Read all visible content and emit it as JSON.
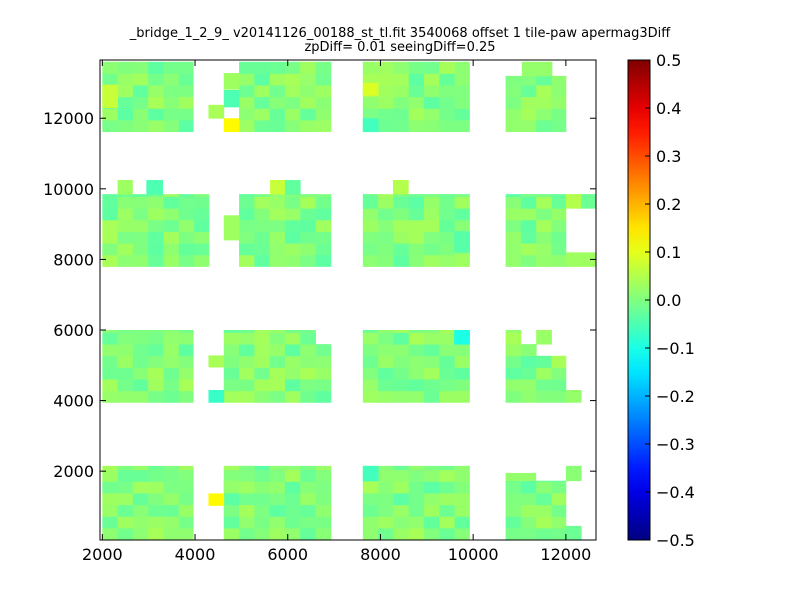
{
  "chart_data": {
    "type": "heatmap",
    "title": "_bridge_1_2_9_ v20141126_00188_st_tl.fit 3540068 offset 1 tile-paw apermag3Diff",
    "subtitle": "zpDiff= 0.01 seeingDiff=0.25",
    "xlim": [
      1950,
      12650
    ],
    "ylim": [
      50,
      13650
    ],
    "xticks": [
      2000,
      4000,
      6000,
      8000,
      10000,
      12000
    ],
    "yticks": [
      2000,
      4000,
      6000,
      8000,
      10000,
      12000
    ],
    "colorbar": {
      "range": [
        -0.5,
        0.5
      ],
      "ticks": [
        "0.5",
        "0.4",
        "0.3",
        "0.2",
        "0.1",
        "0.0",
        "−0.1",
        "−0.2",
        "−0.3",
        "−0.4",
        "−0.5"
      ],
      "colormap": "jet"
    },
    "cell_size": 330,
    "detectors": [
      {
        "x0": 2000,
        "x1": 3960,
        "y0": 60,
        "y1": 2150,
        "extra": [],
        "missing": []
      },
      {
        "x0": 4620,
        "x1": 6930,
        "y0": 60,
        "y1": 2150,
        "extra": [
          [
            4290,
            1030,
            4620,
            1370,
            0.13
          ],
          [
            4620,
            1400,
            4950,
            1730,
            0.02
          ],
          [
            4950,
            1730,
            5280,
            2150,
            0.0
          ]
        ],
        "missing": []
      },
      {
        "x0": 7620,
        "x1": 9920,
        "y0": 60,
        "y1": 2150,
        "extra": [],
        "missing": []
      },
      {
        "x0": 10700,
        "x1": 12000,
        "y0": 60,
        "y1": 1730,
        "extra": [
          [
            10700,
            1730,
            11350,
            1950,
            0.02
          ],
          [
            12000,
            60,
            12330,
            450,
            -0.02
          ],
          [
            12000,
            1730,
            12330,
            2150,
            0.01
          ]
        ],
        "missing": []
      },
      {
        "x0": 2000,
        "x1": 3960,
        "y0": 3950,
        "y1": 6000,
        "extra": [],
        "missing": []
      },
      {
        "x0": 4620,
        "x1": 6930,
        "y0": 3950,
        "y1": 6000,
        "extra": [
          [
            4290,
            3950,
            4620,
            4300,
            -0.07
          ],
          [
            4290,
            4950,
            4620,
            5280,
            0.04
          ]
        ],
        "missing": [
          [
            6600,
            5550,
            6930,
            6000
          ]
        ]
      },
      {
        "x0": 7620,
        "x1": 9920,
        "y0": 3950,
        "y1": 6000,
        "extra": [],
        "missing": []
      },
      {
        "x0": 10700,
        "x1": 12000,
        "y0": 3950,
        "y1": 6000,
        "extra": [
          [
            12000,
            3950,
            12330,
            4300,
            0.02
          ]
        ],
        "missing": [
          [
            11050,
            5600,
            11450,
            6000
          ],
          [
            11700,
            5600,
            12000,
            6000
          ],
          [
            11450,
            5300,
            12000,
            5550
          ]
        ]
      },
      {
        "x0": 2000,
        "x1": 4300,
        "y0": 7800,
        "y1": 9850,
        "extra": [],
        "missing": []
      },
      {
        "x0": 4950,
        "x1": 6930,
        "y0": 7800,
        "y1": 9850,
        "extra": [
          [
            4620,
            8550,
            4950,
            9250,
            0.03
          ]
        ],
        "missing": []
      },
      {
        "x0": 7620,
        "x1": 9920,
        "y0": 7800,
        "y1": 9850,
        "extra": [],
        "missing": []
      },
      {
        "x0": 10700,
        "x1": 12000,
        "y0": 7800,
        "y1": 9850,
        "extra": [
          [
            12000,
            7800,
            12650,
            8200,
            0.03
          ],
          [
            12000,
            9450,
            12330,
            9850,
            0.05
          ],
          [
            12330,
            9450,
            12650,
            9850,
            -0.02
          ]
        ],
        "missing": []
      },
      {
        "x0": 2000,
        "x1": 3960,
        "y0": 11620,
        "y1": 13600,
        "extra": [],
        "missing": []
      },
      {
        "x0": 4950,
        "x1": 6930,
        "y0": 11620,
        "y1": 13600,
        "extra": [
          [
            4620,
            11620,
            4950,
            12000,
            0.13
          ],
          [
            4620,
            12320,
            4950,
            12800,
            -0.05
          ],
          [
            4620,
            12820,
            4950,
            13280,
            0.03
          ],
          [
            4290,
            12000,
            4620,
            12380,
            0.04
          ]
        ],
        "missing": []
      },
      {
        "x0": 7620,
        "x1": 9920,
        "y0": 11620,
        "y1": 13600,
        "extra": [],
        "missing": []
      },
      {
        "x0": 10700,
        "x1": 12000,
        "y0": 11620,
        "y1": 13200,
        "extra": [
          [
            11050,
            13200,
            11700,
            13600,
            0.02
          ]
        ],
        "missing": []
      }
    ],
    "tiny": [
      [
        2330,
        9850,
        2650,
        10250,
        0.03
      ],
      [
        2950,
        9850,
        3300,
        10250,
        -0.05
      ],
      [
        5620,
        9850,
        5940,
        10250,
        0.07
      ],
      [
        5940,
        9850,
        6270,
        10250,
        -0.03
      ],
      [
        8270,
        9850,
        8600,
        10250,
        0.05
      ]
    ],
    "accent_cells": [
      [
        2000,
        12300,
        2330,
        12950,
        0.07
      ],
      [
        7620,
        12650,
        7950,
        13000,
        0.09
      ],
      [
        7620,
        11620,
        7950,
        12000,
        -0.06
      ],
      [
        7620,
        1730,
        7950,
        2150,
        -0.06
      ],
      [
        9590,
        5600,
        9920,
        6000,
        -0.1
      ],
      [
        9590,
        8200,
        9920,
        8800,
        -0.04
      ]
    ]
  }
}
